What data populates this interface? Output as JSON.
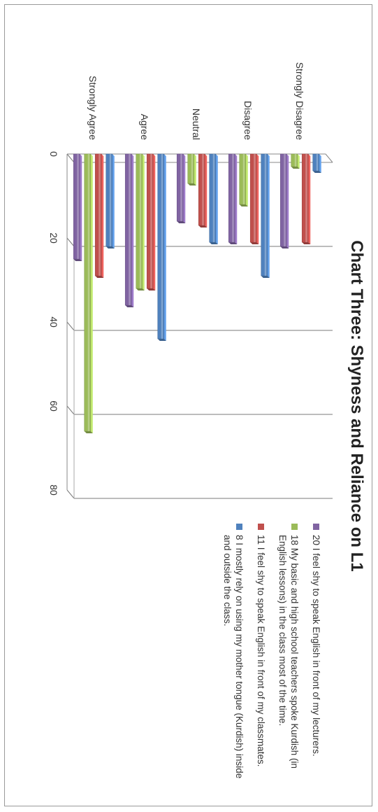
{
  "chart_data": {
    "type": "bar",
    "title": "Chart Three: Shyness and Reliance on L1",
    "categories": [
      "Strongly Disagree",
      "Disagree",
      "Neutral",
      "Agree",
      "Strongly Agree"
    ],
    "ylim": [
      0,
      80
    ],
    "yticks": [
      0,
      20,
      40,
      60,
      80
    ],
    "grid": true,
    "legend_position": "right",
    "series": [
      {
        "name": "8 I mostly rely on using my mother tongue (Kurdish) inside and outside the class.",
        "color": "#4f81bd",
        "values": [
          4,
          29,
          21,
          44,
          22
        ]
      },
      {
        "name": "11 I feel shy to speak English in front of my classmates.",
        "color": "#c0504d",
        "values": [
          21,
          21,
          17,
          32,
          29
        ]
      },
      {
        "name": "18 My basic and high school teachers spoke Kurdish (in English lessons) in the class most of the time.",
        "color": "#9bbb59",
        "values": [
          3,
          12,
          7,
          32,
          66
        ]
      },
      {
        "name": "20 I feel shy to speak English in front of my lecturers.",
        "color": "#8064a2",
        "values": [
          22,
          21,
          16,
          36,
          25
        ]
      }
    ],
    "legend_order": [
      3,
      2,
      1,
      0
    ]
  }
}
